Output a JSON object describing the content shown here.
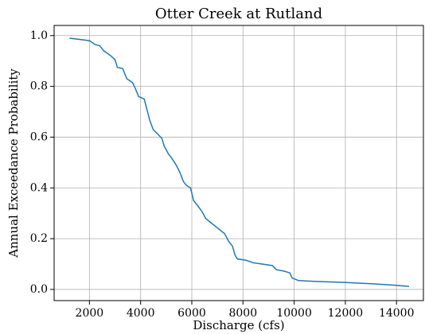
{
  "chart_data": {
    "type": "line",
    "title": "Otter Creek at Rutland",
    "x_label": "Discharge (cfs)",
    "y_label": "Annual Exceedance Probability",
    "x": [
      1224,
      2000,
      2220,
      2400,
      2560,
      2840,
      3000,
      3090,
      3300,
      3460,
      3680,
      3780,
      3920,
      4140,
      4270,
      4360,
      4490,
      4640,
      4830,
      4920,
      5080,
      5230,
      5390,
      5540,
      5670,
      5790,
      5950,
      6070,
      6230,
      6410,
      6540,
      6720,
      7030,
      7280,
      7440,
      7590,
      7690,
      7780,
      8120,
      8400,
      8740,
      9150,
      9300,
      9610,
      9830,
      9920,
      10170,
      10920,
      11850,
      13090,
      14020,
      14490
    ],
    "series": [
      {
        "name": "Otter Creek at Rutland",
        "color": "#1f77b4",
        "values": [
          0.99,
          0.98,
          0.965,
          0.96,
          0.94,
          0.92,
          0.905,
          0.875,
          0.87,
          0.83,
          0.815,
          0.795,
          0.76,
          0.75,
          0.7,
          0.665,
          0.63,
          0.615,
          0.595,
          0.565,
          0.535,
          0.515,
          0.49,
          0.46,
          0.425,
          0.41,
          0.4,
          0.35,
          0.33,
          0.305,
          0.28,
          0.265,
          0.24,
          0.22,
          0.19,
          0.17,
          0.135,
          0.12,
          0.115,
          0.105,
          0.1,
          0.094,
          0.078,
          0.072,
          0.065,
          0.045,
          0.035,
          0.031,
          0.028,
          0.022,
          0.016,
          0.012
        ]
      }
    ],
    "xlim": [
      620,
      15050
    ],
    "xticks": [
      2000,
      4000,
      6000,
      8000,
      10000,
      12000,
      14000
    ],
    "ylim": [
      -0.044,
      1.04
    ],
    "yticks": [
      {
        "value": 0,
        "label": "0.0"
      },
      0.2,
      0.4,
      0.6,
      0.8,
      {
        "value": 1,
        "label": "1.0"
      }
    ],
    "grid": true
  }
}
